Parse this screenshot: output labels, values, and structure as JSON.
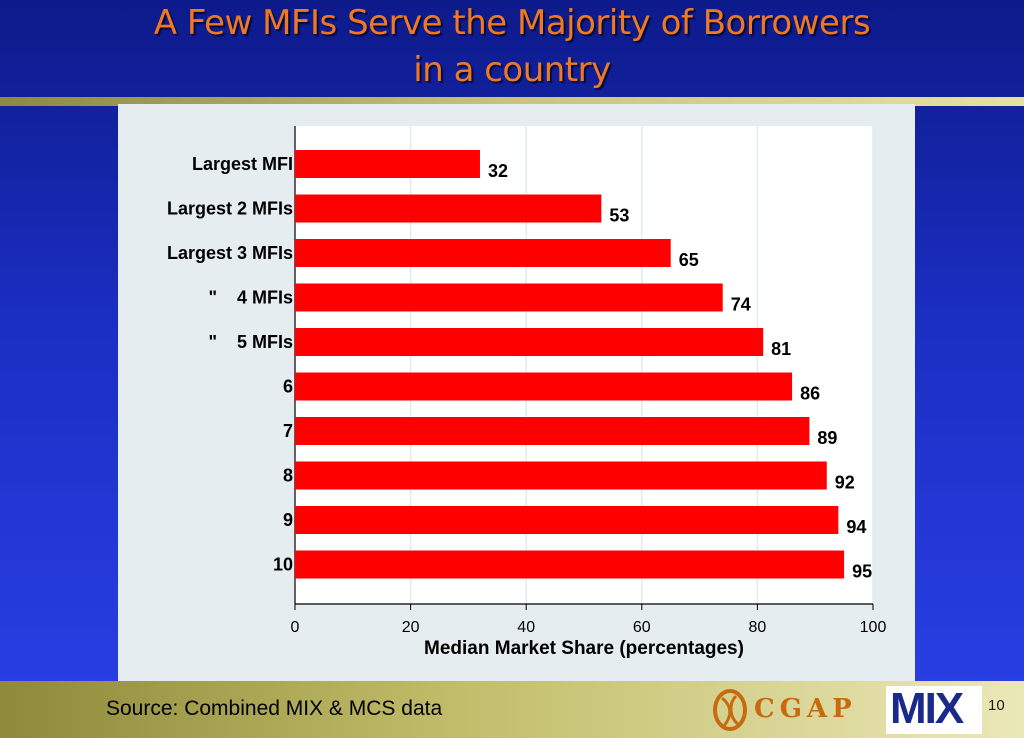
{
  "header": {
    "title_line1": "A Few MFIs Serve the Majority of Borrowers",
    "title_line2": "in a country"
  },
  "chart_data": {
    "type": "bar",
    "orientation": "horizontal",
    "categories": [
      "Largest MFI",
      "Largest 2 MFIs",
      "Largest 3 MFIs",
      "\"    4 MFIs",
      "\"    5 MFIs",
      "6",
      "7",
      "8",
      "9",
      "10"
    ],
    "values": [
      32,
      53,
      65,
      74,
      81,
      86,
      89,
      92,
      94,
      95
    ],
    "xlabel": "Median Market Share (percentages)",
    "xlim": [
      0,
      100
    ],
    "xticks": [
      0,
      20,
      40,
      60,
      80,
      100
    ],
    "bar_color": "#ff0000",
    "grid": true
  },
  "footer": {
    "source": "Source: Combined MIX & MCS data",
    "cgap_logo": "CGAP",
    "mix_logo": "MIX",
    "page_number": "10"
  }
}
